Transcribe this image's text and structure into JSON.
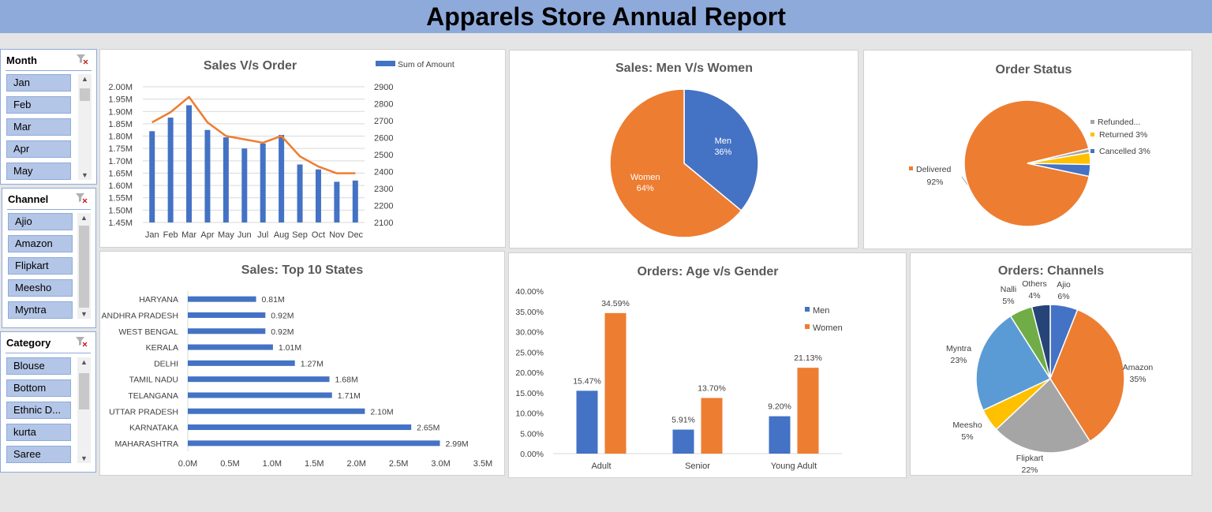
{
  "report_title": "Apparels Store Annual Report",
  "slicers": {
    "month": {
      "title": "Month",
      "items": [
        "Jan",
        "Feb",
        "Mar",
        "Apr",
        "May"
      ]
    },
    "channel": {
      "title": "Channel",
      "items": [
        "Ajio",
        "Amazon",
        "Flipkart",
        "Meesho",
        "Myntra"
      ]
    },
    "category": {
      "title": "Category",
      "items": [
        "Blouse",
        "Bottom",
        "Ethnic D...",
        "kurta",
        "Saree"
      ]
    }
  },
  "icons": {
    "clear_filter": "clear-filter-icon",
    "scroll_up": "chevron-up-icon",
    "scroll_down": "chevron-down-icon"
  },
  "colors": {
    "blue": "#4472c4",
    "orange": "#ed7d31",
    "gray": "#a5a5a5",
    "yellow": "#ffc000",
    "light_blue": "#5b9bd5",
    "green": "#70ad47",
    "navy": "#264478",
    "banner": "#8eaadb"
  },
  "chart_data": [
    {
      "id": "sales_vs_order",
      "type": "bar",
      "title": "Sales V/s Order",
      "categories": [
        "Jan",
        "Feb",
        "Mar",
        "Apr",
        "May",
        "Jun",
        "Jul",
        "Aug",
        "Sep",
        "Oct",
        "Nov",
        "Dec"
      ],
      "series": [
        {
          "name": "Sum of Amount",
          "type": "bar",
          "axis": "left",
          "values": [
            1.82,
            1.875,
            1.925,
            1.825,
            1.795,
            1.75,
            1.77,
            1.805,
            1.685,
            1.665,
            1.615,
            1.62
          ]
        },
        {
          "type": "line",
          "axis": "right",
          "values": [
            2690,
            2750,
            2840,
            2690,
            2610,
            2590,
            2570,
            2610,
            2490,
            2430,
            2390,
            2390
          ]
        }
      ],
      "y_left": {
        "min": 1.45,
        "max": 2.0,
        "ticks": [
          "1.45M",
          "1.50M",
          "1.55M",
          "1.60M",
          "1.65M",
          "1.70M",
          "1.75M",
          "1.80M",
          "1.85M",
          "1.90M",
          "1.95M",
          "2.00M"
        ]
      },
      "y_right": {
        "min": 2100,
        "max": 2900,
        "ticks": [
          "2100",
          "2200",
          "2300",
          "2400",
          "2500",
          "2600",
          "2700",
          "2800",
          "2900"
        ]
      },
      "legend": "top-right",
      "grid": true
    },
    {
      "id": "men_vs_women",
      "type": "pie",
      "title": "Sales: Men V/s Women",
      "slices": [
        {
          "label": "Men",
          "value": 36,
          "pct_label": "36%",
          "color": "#4472c4"
        },
        {
          "label": "Women",
          "value": 64,
          "pct_label": "64%",
          "color": "#ed7d31"
        }
      ]
    },
    {
      "id": "order_status",
      "type": "pie",
      "title": "Order Status",
      "slices": [
        {
          "label": "Delivered",
          "value": 92,
          "pct_label": "92%",
          "color": "#ed7d31"
        },
        {
          "label": "Refunded...",
          "value": 1,
          "pct_label": "",
          "color": "#a5a5a5"
        },
        {
          "label": "Returned",
          "value": 3,
          "pct_label": "3%",
          "color": "#ffc000"
        },
        {
          "label": "Cancelled",
          "value": 3,
          "pct_label": "3%",
          "color": "#4472c4"
        }
      ]
    },
    {
      "id": "top_states",
      "type": "bar",
      "orientation": "horizontal",
      "title": "Sales: Top 10 States",
      "categories": [
        "HARYANA",
        "ANDHRA PRADESH",
        "WEST BENGAL",
        "KERALA",
        "DELHI",
        "TAMIL NADU",
        "TELANGANA",
        "UTTAR PRADESH",
        "KARNATAKA",
        "MAHARASHTRA"
      ],
      "values": [
        0.81,
        0.92,
        0.92,
        1.01,
        1.27,
        1.68,
        1.71,
        2.1,
        2.65,
        2.99
      ],
      "value_labels": [
        "0.81M",
        "0.92M",
        "0.92M",
        "1.01M",
        "1.27M",
        "1.68M",
        "1.71M",
        "2.10M",
        "2.65M",
        "2.99M"
      ],
      "x_range": [
        0,
        3.5
      ],
      "x_ticks": [
        "0.0M",
        "0.5M",
        "1.0M",
        "1.5M",
        "2.0M",
        "2.5M",
        "3.0M",
        "3.5M"
      ]
    },
    {
      "id": "age_vs_gender",
      "type": "bar",
      "title": "Orders: Age v/s Gender",
      "categories": [
        "Adult",
        "Senior",
        "Young Adult"
      ],
      "series": [
        {
          "name": "Men",
          "values": [
            15.47,
            5.91,
            9.2
          ],
          "labels": [
            "15.47%",
            "5.91%",
            "9.20%"
          ]
        },
        {
          "name": "Women",
          "values": [
            34.59,
            13.7,
            21.13
          ],
          "labels": [
            "34.59%",
            "13.70%",
            "21.13%"
          ]
        }
      ],
      "y_range": [
        0,
        40
      ],
      "y_ticks": [
        "0.00%",
        "5.00%",
        "10.00%",
        "15.00%",
        "20.00%",
        "25.00%",
        "30.00%",
        "35.00%",
        "40.00%"
      ],
      "legend": "right"
    },
    {
      "id": "channels",
      "type": "pie",
      "title": "Orders: Channels",
      "slices": [
        {
          "label": "Ajio",
          "value": 6,
          "pct_label": "6%",
          "color": "#4472c4"
        },
        {
          "label": "Amazon",
          "value": 35,
          "pct_label": "35%",
          "color": "#ed7d31"
        },
        {
          "label": "Flipkart",
          "value": 22,
          "pct_label": "22%",
          "color": "#a5a5a5"
        },
        {
          "label": "Meesho",
          "value": 5,
          "pct_label": "5%",
          "color": "#ffc000"
        },
        {
          "label": "Myntra",
          "value": 23,
          "pct_label": "23%",
          "color": "#5b9bd5"
        },
        {
          "label": "Nalli",
          "value": 5,
          "pct_label": "5%",
          "color": "#70ad47"
        },
        {
          "label": "Others",
          "value": 4,
          "pct_label": "4%",
          "color": "#264478"
        }
      ]
    }
  ]
}
